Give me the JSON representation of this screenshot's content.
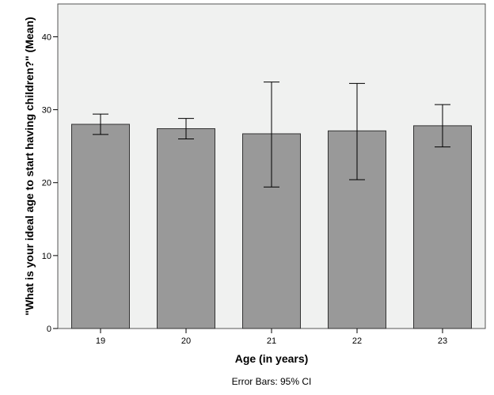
{
  "chart_data": {
    "type": "bar",
    "categories": [
      "19",
      "20",
      "21",
      "22",
      "23"
    ],
    "values": [
      28.0,
      27.4,
      26.7,
      27.1,
      27.8
    ],
    "error_bars": {
      "lower": [
        26.6,
        26.0,
        19.4,
        20.4,
        24.9
      ],
      "upper": [
        29.4,
        28.8,
        33.8,
        33.6,
        30.7
      ]
    },
    "xlabel": "Age (in years)",
    "ylabel": "\"What is your ideal age to start having children?\" (Mean)",
    "ylim": [
      0,
      44.5
    ],
    "yticks": [
      0,
      10,
      20,
      30,
      40
    ],
    "footnote": "Error Bars: 95% CI",
    "grid": false,
    "colors": {
      "bar": "#999999",
      "plot_bg": "#f0f1f0",
      "stroke": "#000000"
    }
  }
}
